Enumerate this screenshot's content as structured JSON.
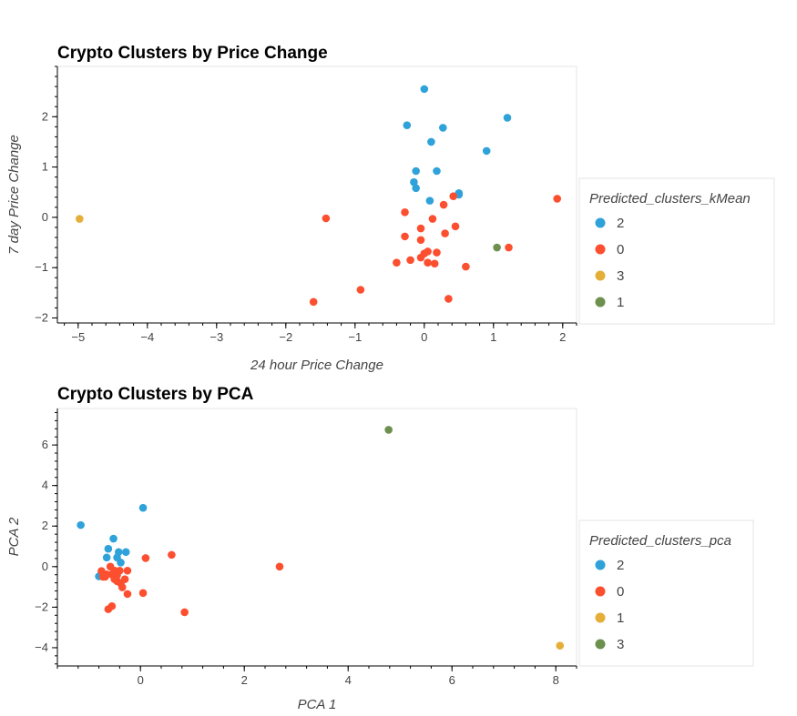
{
  "chart_data": [
    {
      "type": "scatter",
      "title": "Crypto Clusters by Price Change",
      "xlabel": "24 hour Price Change",
      "ylabel": "7 day Price Change",
      "xlim": [
        -5.3,
        2.2
      ],
      "ylim": [
        -2.1,
        3.0
      ],
      "xticks": [
        -5,
        -4,
        -3,
        -2,
        -1,
        0,
        1,
        2
      ],
      "yticks": [
        -2,
        -1,
        0,
        1,
        2
      ],
      "grid": false,
      "legend_title": "Predicted_clusters_kMean",
      "legend_position": "right",
      "series": [
        {
          "name": "2",
          "color": "#30a2da",
          "points": [
            [
              0.0,
              2.55
            ],
            [
              -0.25,
              1.83
            ],
            [
              0.27,
              1.78
            ],
            [
              1.2,
              1.98
            ],
            [
              0.1,
              1.5
            ],
            [
              0.9,
              1.32
            ],
            [
              -0.12,
              0.92
            ],
            [
              0.18,
              0.92
            ],
            [
              -0.15,
              0.7
            ],
            [
              -0.12,
              0.58
            ],
            [
              0.5,
              0.48
            ],
            [
              0.5,
              0.45
            ],
            [
              0.08,
              0.33
            ]
          ]
        },
        {
          "name": "0",
          "color": "#fc4f30",
          "points": [
            [
              1.92,
              0.37
            ],
            [
              0.42,
              0.42
            ],
            [
              0.28,
              0.25
            ],
            [
              -0.28,
              0.1
            ],
            [
              -1.42,
              -0.02
            ],
            [
              0.12,
              -0.03
            ],
            [
              -0.05,
              -0.22
            ],
            [
              0.45,
              -0.18
            ],
            [
              -0.28,
              -0.38
            ],
            [
              0.3,
              -0.32
            ],
            [
              -0.05,
              -0.45
            ],
            [
              1.22,
              -0.6
            ],
            [
              0.05,
              -0.68
            ],
            [
              0.0,
              -0.72
            ],
            [
              0.18,
              -0.7
            ],
            [
              -0.05,
              -0.8
            ],
            [
              -0.2,
              -0.85
            ],
            [
              0.05,
              -0.9
            ],
            [
              -0.4,
              -0.9
            ],
            [
              0.15,
              -0.92
            ],
            [
              0.6,
              -0.98
            ],
            [
              -0.92,
              -1.44
            ],
            [
              0.35,
              -1.62
            ],
            [
              -1.6,
              -1.68
            ]
          ]
        },
        {
          "name": "3",
          "color": "#e5ae38",
          "points": [
            [
              -4.98,
              -0.03
            ]
          ]
        },
        {
          "name": "1",
          "color": "#6d904f",
          "points": [
            [
              1.05,
              -0.6
            ]
          ]
        }
      ]
    },
    {
      "type": "scatter",
      "title": "Crypto Clusters by PCA",
      "xlabel": "PCA 1",
      "ylabel": "PCA 2",
      "xlim": [
        -1.6,
        8.4
      ],
      "ylim": [
        -4.9,
        7.8
      ],
      "xticks": [
        0,
        2,
        4,
        6,
        8
      ],
      "yticks": [
        -4,
        -2,
        0,
        2,
        4,
        6
      ],
      "grid": false,
      "legend_title": "Predicted_clusters_pca",
      "legend_position": "right",
      "series": [
        {
          "name": "2",
          "color": "#30a2da",
          "points": [
            [
              0.05,
              2.9
            ],
            [
              -1.15,
              2.05
            ],
            [
              -0.52,
              1.38
            ],
            [
              -0.62,
              0.88
            ],
            [
              -0.42,
              0.72
            ],
            [
              -0.28,
              0.72
            ],
            [
              -0.65,
              0.45
            ],
            [
              -0.45,
              0.45
            ],
            [
              -0.38,
              0.2
            ],
            [
              -0.8,
              -0.48
            ]
          ]
        },
        {
          "name": "0",
          "color": "#fc4f30",
          "points": [
            [
              0.6,
              0.58
            ],
            [
              0.1,
              0.42
            ],
            [
              2.68,
              0.0
            ],
            [
              -0.58,
              0.0
            ],
            [
              -0.75,
              -0.22
            ],
            [
              -0.5,
              -0.2
            ],
            [
              -0.4,
              -0.2
            ],
            [
              -0.25,
              -0.2
            ],
            [
              -0.65,
              -0.38
            ],
            [
              -0.55,
              -0.38
            ],
            [
              -0.45,
              -0.42
            ],
            [
              -0.72,
              -0.5
            ],
            [
              -0.68,
              -0.5
            ],
            [
              -0.5,
              -0.62
            ],
            [
              -0.3,
              -0.62
            ],
            [
              -0.45,
              -0.72
            ],
            [
              -0.38,
              -0.82
            ],
            [
              -0.35,
              -1.02
            ],
            [
              -0.25,
              -1.35
            ],
            [
              0.05,
              -1.3
            ],
            [
              -0.55,
              -1.95
            ],
            [
              -0.62,
              -2.1
            ],
            [
              0.85,
              -2.25
            ]
          ]
        },
        {
          "name": "1",
          "color": "#e5ae38",
          "points": [
            [
              8.08,
              -3.9
            ]
          ]
        },
        {
          "name": "3",
          "color": "#6d904f",
          "points": [
            [
              4.78,
              6.75
            ]
          ]
        }
      ]
    }
  ]
}
